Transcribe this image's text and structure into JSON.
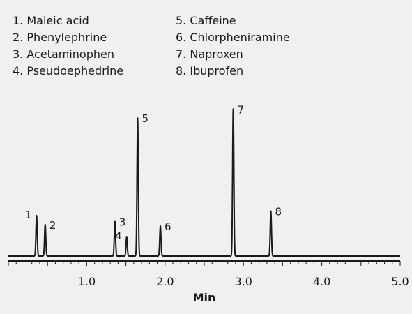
{
  "chart_data": {
    "type": "line",
    "xlabel": "Min",
    "ylabel": "",
    "xlim": [
      0,
      5.0
    ],
    "xticks": [
      "1.0",
      "2.0",
      "3.0",
      "4.0",
      "5.0"
    ],
    "legend": [
      {
        "num": "1.",
        "name": "Maleic acid"
      },
      {
        "num": "2.",
        "name": "Phenylephrine"
      },
      {
        "num": "3.",
        "name": "Acetaminophen"
      },
      {
        "num": "4.",
        "name": "Pseudoephedrine"
      },
      {
        "num": "5.",
        "name": "Caffeine"
      },
      {
        "num": "6.",
        "name": "Chlorpheniramine"
      },
      {
        "num": "7.",
        "name": "Naproxen"
      },
      {
        "num": "8.",
        "name": "Ibuprofen"
      }
    ],
    "peaks": [
      {
        "label": "1",
        "x": 0.36,
        "height": 0.27
      },
      {
        "label": "2",
        "x": 0.47,
        "height": 0.21
      },
      {
        "label": "3",
        "x": 1.36,
        "height": 0.23
      },
      {
        "label": "4",
        "x": 1.51,
        "height": 0.13
      },
      {
        "label": "5",
        "x": 1.65,
        "height": 0.92
      },
      {
        "label": "6",
        "x": 1.94,
        "height": 0.2
      },
      {
        "label": "7",
        "x": 2.87,
        "height": 0.98
      },
      {
        "label": "8",
        "x": 3.35,
        "height": 0.3
      }
    ],
    "grid": false,
    "legend_position": "top"
  }
}
